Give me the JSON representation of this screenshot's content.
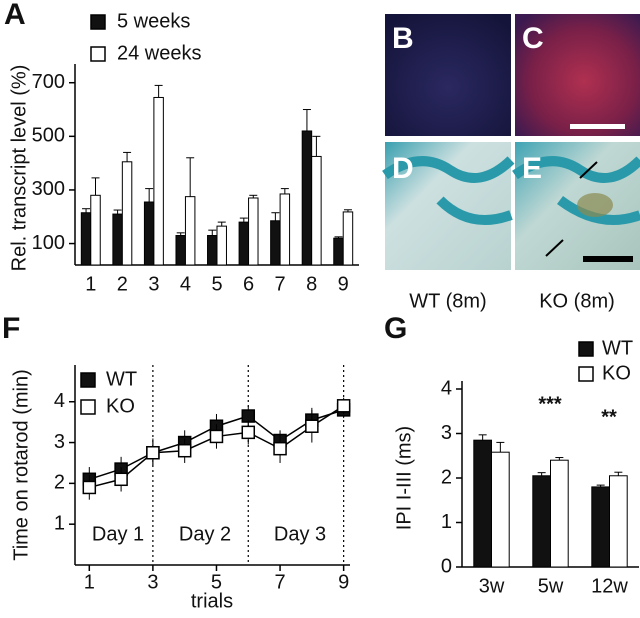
{
  "chart_data": [
    {
      "type": "bar",
      "label": "A",
      "ylabel": "Rel. transcript level (%)",
      "categories": [
        "1",
        "2",
        "3",
        "4",
        "5",
        "6",
        "7",
        "8",
        "9"
      ],
      "series": [
        {
          "name": "5 weeks",
          "color": "#111111",
          "values": [
            215,
            210,
            255,
            130,
            130,
            180,
            185,
            520,
            120
          ],
          "errors": [
            15,
            15,
            50,
            10,
            20,
            15,
            30,
            80,
            5
          ]
        },
        {
          "name": "24 weeks",
          "color": "#ffffff",
          "values": [
            280,
            405,
            645,
            275,
            165,
            270,
            285,
            425,
            218
          ],
          "errors": [
            65,
            35,
            45,
            145,
            15,
            10,
            20,
            75,
            8
          ]
        }
      ],
      "ylim": [
        20,
        740
      ],
      "yticks": [
        100,
        300,
        500,
        700
      ]
    },
    {
      "type": "line",
      "label": "F",
      "ylabel": "Time on rotarod (min)",
      "xlabel": "trials",
      "x": [
        1,
        2,
        3,
        4,
        5,
        6,
        7,
        8,
        9
      ],
      "series": [
        {
          "name": "WT",
          "color": "#111111",
          "values": [
            2.1,
            2.35,
            2.75,
            3.0,
            3.4,
            3.65,
            3.05,
            3.55,
            3.8
          ],
          "errors": [
            0.3,
            0.3,
            0.35,
            0.3,
            0.3,
            0.25,
            0.25,
            0.3,
            0.2
          ]
        },
        {
          "name": "KO",
          "color": "#ffffff",
          "values": [
            1.9,
            2.1,
            2.75,
            2.8,
            3.15,
            3.25,
            2.85,
            3.4,
            3.9
          ],
          "errors": [
            0.3,
            0.3,
            0.3,
            0.3,
            0.3,
            0.3,
            0.35,
            0.4,
            0.2
          ]
        }
      ],
      "xlim": [
        0.55,
        9.2
      ],
      "xticks": [
        1,
        3,
        5,
        7,
        9
      ],
      "ylim": [
        0,
        4.9
      ],
      "yticks": [
        1,
        2,
        3,
        4
      ],
      "vlines": [
        3,
        6,
        9
      ],
      "annotations": [
        "Day 1",
        "Day 2",
        "Day 3"
      ]
    },
    {
      "type": "bar",
      "label": "G",
      "ylabel": "IPI I-III (ms)",
      "categories": [
        "3w",
        "5w",
        "12w"
      ],
      "series": [
        {
          "name": "WT",
          "color": "#111111",
          "values": [
            2.85,
            2.05,
            1.8
          ],
          "errors": [
            0.12,
            0.07,
            0.04
          ]
        },
        {
          "name": "KO",
          "color": "#ffffff",
          "values": [
            2.58,
            2.4,
            2.05
          ],
          "errors": [
            0.22,
            0.06,
            0.08
          ]
        }
      ],
      "ylim": [
        0,
        4
      ],
      "yticks": [
        0,
        1,
        2,
        3,
        4
      ],
      "annotations": [
        "***",
        "**"
      ]
    }
  ],
  "images": [
    {
      "label": "B"
    },
    {
      "label": "C"
    },
    {
      "label": "D"
    },
    {
      "label": "E"
    }
  ],
  "captions": [
    "WT (8m)",
    "KO (8m)"
  ]
}
